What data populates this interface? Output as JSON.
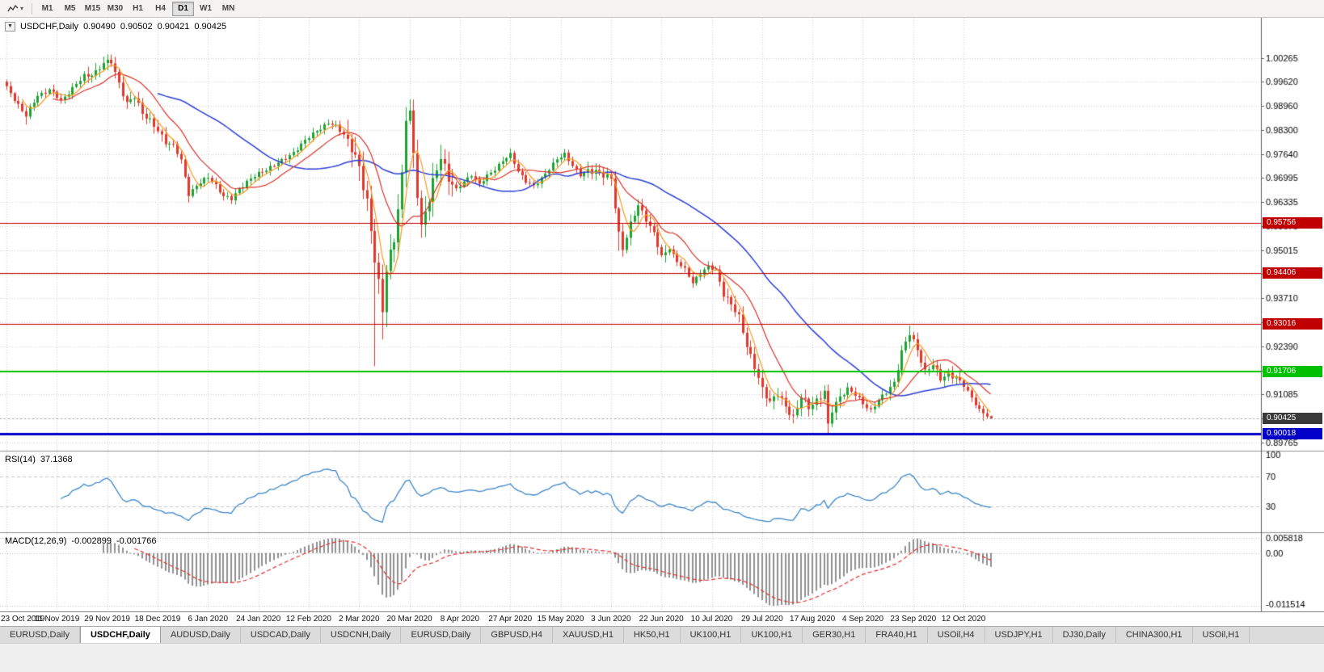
{
  "toolbar": {
    "timeframes": [
      {
        "label": "M1",
        "active": false
      },
      {
        "label": "M5",
        "active": false
      },
      {
        "label": "M15",
        "active": false
      },
      {
        "label": "M30",
        "active": false
      },
      {
        "label": "H1",
        "active": false
      },
      {
        "label": "H4",
        "active": false
      },
      {
        "label": "D1",
        "active": true
      },
      {
        "label": "W1",
        "active": false
      },
      {
        "label": "MN",
        "active": false
      }
    ]
  },
  "header": {
    "symbol": "USDCHF,Daily",
    "open": "0.90490",
    "high": "0.90502",
    "low": "0.90421",
    "close": "0.90425"
  },
  "indicators": {
    "rsi": {
      "name": "RSI(14)",
      "value": "37.1368",
      "color": "#3E86C8",
      "levels": [
        {
          "label": "100",
          "value": 100,
          "dashed": false
        },
        {
          "label": "70",
          "value": 70,
          "dashed": true
        },
        {
          "label": "30",
          "value": 30,
          "dashed": true
        }
      ]
    },
    "macd": {
      "name": "MACD(12,26,9)",
      "main": "-0.002899",
      "signal": "-0.001766",
      "axis_top": "0.005818",
      "axis_zero": "0.00",
      "axis_bottom": "-0.011514",
      "bar_color": "#909090",
      "signal_color": "#E03030"
    }
  },
  "tabs": {
    "items": [
      {
        "label": "EURUSD,Daily",
        "active": false
      },
      {
        "label": "USDCHF,Daily",
        "active": true
      },
      {
        "label": "AUDUSD,Daily",
        "active": false
      },
      {
        "label": "USDCAD,Daily",
        "active": false
      },
      {
        "label": "USDCNH,Daily",
        "active": false
      },
      {
        "label": "EURUSD,Daily",
        "active": false
      },
      {
        "label": "GBPUSD,H4",
        "active": false
      },
      {
        "label": "XAUUSD,H1",
        "active": false
      },
      {
        "label": "HK50,H1",
        "active": false
      },
      {
        "label": "UK100,H1",
        "active": false
      },
      {
        "label": "UK100,H1",
        "active": false
      },
      {
        "label": "GER30,H1",
        "active": false
      },
      {
        "label": "FRA40,H1",
        "active": false
      },
      {
        "label": "USOil,H4",
        "active": false
      },
      {
        "label": "USDJPY,H1",
        "active": false
      },
      {
        "label": "DJ30,Daily",
        "active": false
      },
      {
        "label": "CHINA300,H1",
        "active": false
      },
      {
        "label": "USOil,H1",
        "active": false
      }
    ]
  },
  "chart_data": {
    "type": "candlestick",
    "symbol": "USDCHF",
    "timeframe": "Daily",
    "bars": 255,
    "last_ohlc": {
      "open": 0.9049,
      "high": 0.90502,
      "low": 0.90421,
      "close": 0.90425
    },
    "y_ticks": [
      "1.00265",
      "0.99620",
      "0.98960",
      "0.98300",
      "0.97640",
      "0.96995",
      "0.96335",
      "0.95675",
      "0.95015",
      "0.94370",
      "0.93710",
      "0.93050",
      "0.92390",
      "0.91730",
      "0.91085",
      "0.90425",
      "0.89765"
    ],
    "x_labels": [
      "23 Oct 2019",
      "11 Nov 2019",
      "29 Nov 2019",
      "18 Dec 2019",
      "6 Jan 2020",
      "24 Jan 2020",
      "12 Feb 2020",
      "2 Mar 2020",
      "20 Mar 2020",
      "8 Apr 2020",
      "27 Apr 2020",
      "15 May 2020",
      "3 Jun 2020",
      "22 Jun 2020",
      "10 Jul 2020",
      "29 Jul 2020",
      "17 Aug 2020",
      "4 Sep 2020",
      "23 Sep 2020",
      "12 Oct 2020"
    ],
    "x_tick_step": 13,
    "horizontal_lines": [
      {
        "label": "0.95756",
        "value": 0.95756,
        "color": "#C00000",
        "width": 1
      },
      {
        "label": "0.94406",
        "value": 0.94406,
        "color": "#C00000",
        "width": 1
      },
      {
        "label": "0.93016",
        "value": 0.93016,
        "color": "#C00000",
        "width": 1
      },
      {
        "label": "0.91706",
        "value": 0.91706,
        "color": "#00C000",
        "width": 2
      },
      {
        "label": "0.90018",
        "value": 0.90018,
        "color": "#0000C8",
        "width": 3
      }
    ],
    "current_price": {
      "label": "0.90425",
      "value": 0.90425,
      "color": "#3A3A3A"
    },
    "up_color": "#1FA233",
    "down_color": "#E0382C",
    "moving_averages": [
      {
        "period": 40,
        "color": "#2B3FD6",
        "width": 1.5
      },
      {
        "period": 13,
        "color": "#D8342C",
        "width": 1.2
      },
      {
        "period": 5,
        "color": "#F59A23",
        "width": 1.2
      }
    ],
    "base_volatility": 0.0013,
    "volatility_zones": [
      [
        20,
        42,
        0.002
      ],
      [
        88,
        115,
        0.0042
      ],
      [
        150,
        170,
        0.0021
      ],
      [
        185,
        215,
        0.0023
      ],
      [
        228,
        246,
        0.0019
      ]
    ],
    "close_path": [
      [
        0,
        0.9945
      ],
      [
        3,
        0.99
      ],
      [
        5,
        0.9868
      ],
      [
        8,
        0.9925
      ],
      [
        11,
        0.994
      ],
      [
        14,
        0.991
      ],
      [
        17,
        0.9945
      ],
      [
        20,
        0.9975
      ],
      [
        23,
        0.999
      ],
      [
        25,
        1.001
      ],
      [
        27,
        1.0018
      ],
      [
        29,
        0.996
      ],
      [
        31,
        0.99
      ],
      [
        33,
        0.992
      ],
      [
        35,
        0.988
      ],
      [
        37,
        0.9855
      ],
      [
        39,
        0.9825
      ],
      [
        41,
        0.98
      ],
      [
        43,
        0.979
      ],
      [
        45,
        0.9745
      ],
      [
        47,
        0.9655
      ],
      [
        49,
        0.968
      ],
      [
        52,
        0.97
      ],
      [
        54,
        0.968
      ],
      [
        56,
        0.965
      ],
      [
        58,
        0.964
      ],
      [
        60,
        0.967
      ],
      [
        62,
        0.969
      ],
      [
        65,
        0.971
      ],
      [
        68,
        0.973
      ],
      [
        71,
        0.9745
      ],
      [
        74,
        0.977
      ],
      [
        77,
        0.98
      ],
      [
        80,
        0.983
      ],
      [
        83,
        0.9848
      ],
      [
        85,
        0.984
      ],
      [
        87,
        0.982
      ],
      [
        89,
        0.978
      ],
      [
        91,
        0.972
      ],
      [
        93,
        0.964
      ],
      [
        95,
        0.948
      ],
      [
        97,
        0.933
      ],
      [
        98,
        0.945
      ],
      [
        100,
        0.954
      ],
      [
        102,
        0.97
      ],
      [
        103,
        0.986
      ],
      [
        104,
        0.9875
      ],
      [
        105,
        0.976
      ],
      [
        107,
        0.957
      ],
      [
        109,
        0.964
      ],
      [
        111,
        0.972
      ],
      [
        112,
        0.9765
      ],
      [
        114,
        0.97
      ],
      [
        116,
        0.9665
      ],
      [
        118,
        0.969
      ],
      [
        120,
        0.971
      ],
      [
        122,
        0.968
      ],
      [
        124,
        0.9705
      ],
      [
        126,
        0.9725
      ],
      [
        128,
        0.9745
      ],
      [
        130,
        0.9762
      ],
      [
        132,
        0.972
      ],
      [
        134,
        0.969
      ],
      [
        136,
        0.9675
      ],
      [
        138,
        0.97
      ],
      [
        140,
        0.9725
      ],
      [
        142,
        0.9748
      ],
      [
        144,
        0.9765
      ],
      [
        146,
        0.9735
      ],
      [
        148,
        0.9705
      ],
      [
        150,
        0.9718
      ],
      [
        152,
        0.9722
      ],
      [
        154,
        0.9705
      ],
      [
        156,
        0.9695
      ],
      [
        158,
        0.955
      ],
      [
        159,
        0.9508
      ],
      [
        161,
        0.957
      ],
      [
        163,
        0.9625
      ],
      [
        165,
        0.959
      ],
      [
        167,
        0.9545
      ],
      [
        169,
        0.9482
      ],
      [
        171,
        0.951
      ],
      [
        173,
        0.947
      ],
      [
        175,
        0.9448
      ],
      [
        177,
        0.9415
      ],
      [
        179,
        0.944
      ],
      [
        181,
        0.9455
      ],
      [
        183,
        0.9448
      ],
      [
        185,
        0.9385
      ],
      [
        187,
        0.935
      ],
      [
        189,
        0.932
      ],
      [
        191,
        0.9245
      ],
      [
        193,
        0.918
      ],
      [
        195,
        0.912
      ],
      [
        197,
        0.9092
      ],
      [
        199,
        0.911
      ],
      [
        201,
        0.907
      ],
      [
        203,
        0.9048
      ],
      [
        205,
        0.9105
      ],
      [
        207,
        0.9068
      ],
      [
        209,
        0.9092
      ],
      [
        211,
        0.912
      ],
      [
        212,
        0.9022
      ],
      [
        213,
        0.9062
      ],
      [
        215,
        0.91
      ],
      [
        217,
        0.9126
      ],
      [
        219,
        0.9106
      ],
      [
        221,
        0.9082
      ],
      [
        223,
        0.9066
      ],
      [
        225,
        0.9092
      ],
      [
        227,
        0.9112
      ],
      [
        229,
        0.9142
      ],
      [
        231,
        0.9225
      ],
      [
        233,
        0.9272
      ],
      [
        235,
        0.9232
      ],
      [
        237,
        0.9172
      ],
      [
        239,
        0.9186
      ],
      [
        241,
        0.9152
      ],
      [
        243,
        0.9166
      ],
      [
        245,
        0.915
      ],
      [
        247,
        0.9132
      ],
      [
        249,
        0.9102
      ],
      [
        251,
        0.9064
      ],
      [
        253,
        0.9048
      ],
      [
        254,
        0.9043
      ]
    ],
    "special_wicks": [
      {
        "index": 5,
        "low": 0.9845
      },
      {
        "index": 27,
        "high": 1.0026
      },
      {
        "index": 47,
        "low": 0.9632
      },
      {
        "index": 58,
        "low": 0.9628
      },
      {
        "index": 85,
        "high": 0.9856
      },
      {
        "index": 95,
        "low": 0.9185
      },
      {
        "index": 97,
        "low": 0.9258
      },
      {
        "index": 103,
        "high": 0.9893
      },
      {
        "index": 158,
        "low": 0.95
      },
      {
        "index": 195,
        "low": 0.9098
      },
      {
        "index": 203,
        "low": 0.9038
      },
      {
        "index": 212,
        "low": 0.8999
      },
      {
        "index": 233,
        "high": 0.9296
      },
      {
        "index": 252,
        "low": 0.9036
      }
    ]
  }
}
